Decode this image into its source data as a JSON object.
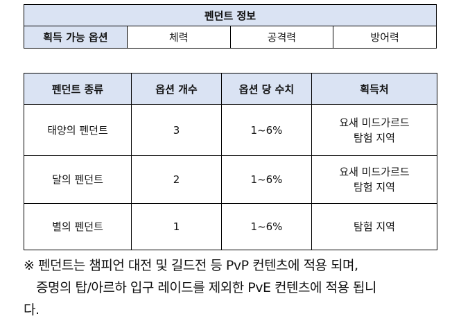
{
  "info_table": {
    "title": "펜던트 정보",
    "label": "획득 가능 옵션",
    "options": [
      "체력",
      "공격력",
      "방어력"
    ]
  },
  "main_table": {
    "headers": [
      "펜던트 종류",
      "옵션 개수",
      "옵션 당 수치",
      "획득처"
    ],
    "rows": [
      {
        "name": "태양의 펜던트",
        "count": "3",
        "value": "1~6%",
        "source": [
          "요새 미드가르드",
          "탐험 지역"
        ]
      },
      {
        "name": "달의 펜던트",
        "count": "2",
        "value": "1~6%",
        "source": [
          "요새 미드가르드",
          "탐험 지역"
        ]
      },
      {
        "name": "별의 펜던트",
        "count": "1",
        "value": "1~6%",
        "source": [
          "탐험 지역"
        ]
      }
    ]
  },
  "note": {
    "line1": "※ 펜던트는 챔피언 대전 및 길드전 등 PvP 컨텐츠에 적용 되며,",
    "line2": "증명의 탑/아르하 입구 레이드를 제외한 PvE 컨텐츠에 적용 됩니",
    "line3": "다."
  }
}
